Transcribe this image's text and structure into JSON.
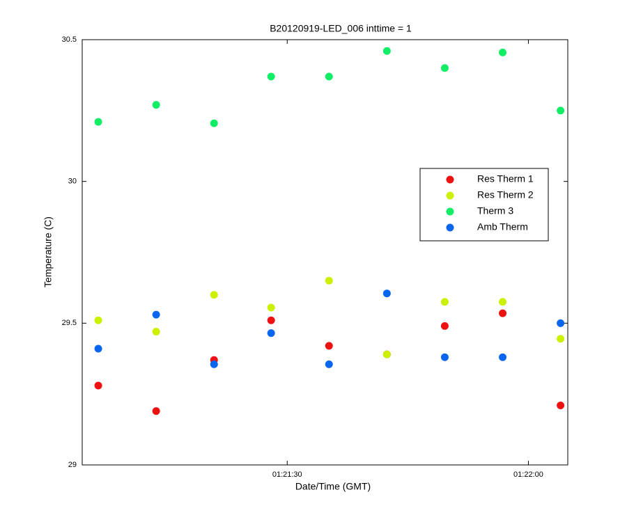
{
  "chart_data": {
    "type": "scatter",
    "title": "B20120919-LED_006 inttime = 1",
    "x_label": "Date/Time (GMT)",
    "y_label": "Temperature (C)",
    "xlim": [
      4864.5,
      4924.9
    ],
    "xticks": [
      {
        "value": 4890,
        "label": "01:21:30"
      },
      {
        "value": 4920,
        "label": "01:22:00"
      }
    ],
    "ylim": [
      29,
      30.5
    ],
    "yticks": [
      29,
      29.5,
      30,
      30.5
    ],
    "legend": "upper right",
    "series": [
      {
        "name": "Res Therm 1",
        "color": "#ee1111",
        "x": [
          4866.5,
          4873.7,
          4880.9,
          4888.0,
          4895.2,
          4902.4,
          4909.6,
          4916.8,
          4924.0
        ],
        "values": [
          29.28,
          29.19,
          29.37,
          29.51,
          29.42,
          29.39,
          29.49,
          29.535,
          29.21
        ]
      },
      {
        "name": "Res Therm 2",
        "color": "#ccf000",
        "x": [
          4866.5,
          4873.7,
          4880.9,
          4888.0,
          4895.2,
          4902.4,
          4909.6,
          4916.8,
          4924.0
        ],
        "values": [
          29.51,
          29.47,
          29.6,
          29.555,
          29.65,
          29.39,
          29.575,
          29.575,
          29.445
        ]
      },
      {
        "name": "Therm 3",
        "color": "#11ee66",
        "x": [
          4866.5,
          4873.7,
          4880.9,
          4888.0,
          4895.2,
          4902.4,
          4909.6,
          4916.8,
          4924.0
        ],
        "values": [
          30.21,
          30.27,
          30.205,
          30.37,
          30.37,
          30.46,
          30.4,
          30.455,
          30.25
        ]
      },
      {
        "name": "Amb Therm",
        "color": "#0a66ee",
        "x": [
          4866.5,
          4873.7,
          4880.9,
          4888.0,
          4895.2,
          4902.4,
          4909.6,
          4916.8,
          4924.0
        ],
        "values": [
          29.41,
          29.53,
          29.355,
          29.465,
          29.355,
          29.605,
          29.38,
          29.38,
          29.5
        ]
      }
    ]
  }
}
